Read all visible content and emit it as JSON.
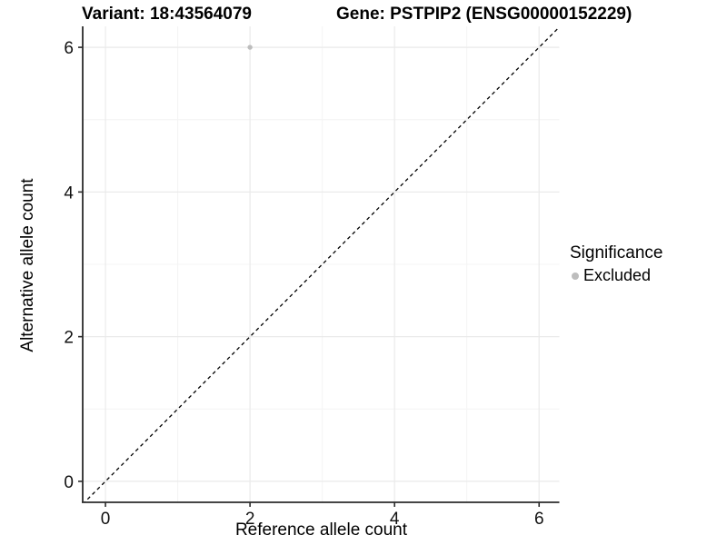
{
  "chart_data": {
    "type": "scatter",
    "title": "Variant: 18:43564079",
    "subtitle": "Gene: PSTPIP2 (ENSG00000152229)",
    "xlabel": "Reference allele count",
    "ylabel": "Alternative allele count",
    "xlim": [
      -0.315,
      6.28
    ],
    "ylim": [
      -0.29,
      6.29
    ],
    "xticks": [
      0,
      2,
      4,
      6
    ],
    "yticks": [
      0,
      2,
      4,
      6
    ],
    "x_minor_ticks": [
      1,
      3,
      5
    ],
    "y_minor_ticks": [
      1,
      3,
      5
    ],
    "grid": true,
    "points": [
      {
        "x": 2,
        "y": 6,
        "series": "Excluded"
      }
    ],
    "identity_line": {
      "slope": 1,
      "intercept": 0,
      "style": "dashed",
      "color": "#000000"
    },
    "legend": {
      "title": "Significance",
      "position": "right",
      "items": [
        {
          "label": "Excluded",
          "color": "#bdbdbd"
        }
      ]
    },
    "colors": {
      "point": "#bdbdbd",
      "grid_major": "#eaeaea",
      "grid_minor": "#f4f4f4",
      "axis_line": "#2b2b2b",
      "tick_label": "#111111"
    }
  }
}
